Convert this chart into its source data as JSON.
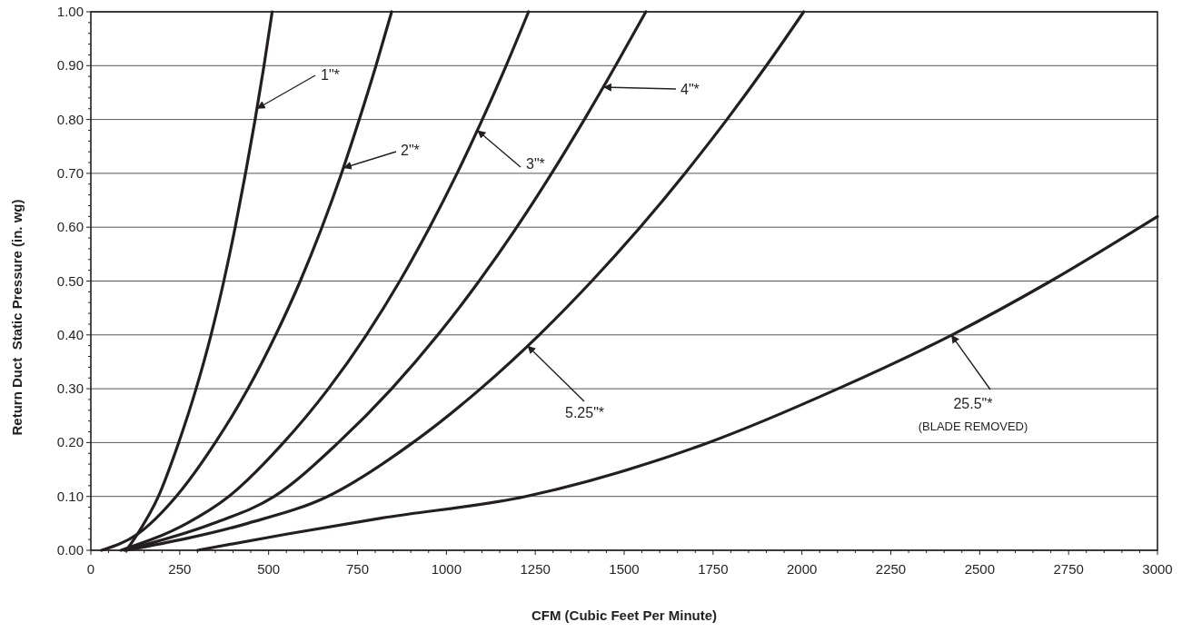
{
  "chart_data": {
    "type": "line",
    "xlabel": "CFM (Cubic Feet Per Minute)",
    "ylabel": "Return Duct  Static Pressure (in. wg)",
    "xlim": [
      0,
      3000
    ],
    "ylim": [
      0,
      1
    ],
    "grid": "y",
    "xticks": [
      0,
      {
        "value": 50,
        "label": null
      },
      {
        "value": 100,
        "label": null
      },
      {
        "value": 150,
        "label": null
      },
      {
        "value": 200,
        "label": null
      },
      250,
      {
        "value": 300,
        "label": null
      },
      {
        "value": 350,
        "label": null
      },
      {
        "value": 400,
        "label": null
      },
      {
        "value": 450,
        "label": null
      },
      500,
      {
        "value": 550,
        "label": null
      },
      {
        "value": 600,
        "label": null
      },
      {
        "value": 650,
        "label": null
      },
      {
        "value": 700,
        "label": null
      },
      750,
      {
        "value": 800,
        "label": null
      },
      {
        "value": 850,
        "label": null
      },
      {
        "value": 900,
        "label": null
      },
      {
        "value": 950,
        "label": null
      },
      1000,
      {
        "value": 1050,
        "label": null
      },
      {
        "value": 1100,
        "label": null
      },
      {
        "value": 1150,
        "label": null
      },
      {
        "value": 1200,
        "label": null
      },
      1250,
      {
        "value": 1300,
        "label": null
      },
      {
        "value": 1350,
        "label": null
      },
      {
        "value": 1400,
        "label": null
      },
      {
        "value": 1450,
        "label": null
      },
      1500,
      {
        "value": 1550,
        "label": null
      },
      {
        "value": 1600,
        "label": null
      },
      {
        "value": 1650,
        "label": null
      },
      {
        "value": 1700,
        "label": null
      },
      1750,
      {
        "value": 1800,
        "label": null
      },
      {
        "value": 1850,
        "label": null
      },
      {
        "value": 1900,
        "label": null
      },
      {
        "value": 1950,
        "label": null
      },
      2000,
      {
        "value": 2050,
        "label": null
      },
      {
        "value": 2100,
        "label": null
      },
      {
        "value": 2150,
        "label": null
      },
      {
        "value": 2200,
        "label": null
      },
      2250,
      {
        "value": 2300,
        "label": null
      },
      {
        "value": 2350,
        "label": null
      },
      {
        "value": 2400,
        "label": null
      },
      {
        "value": 2450,
        "label": null
      },
      2500,
      {
        "value": 2550,
        "label": null
      },
      {
        "value": 2600,
        "label": null
      },
      {
        "value": 2650,
        "label": null
      },
      {
        "value": 2700,
        "label": null
      },
      2750,
      {
        "value": 2800,
        "label": null
      },
      {
        "value": 2850,
        "label": null
      },
      {
        "value": 2900,
        "label": null
      },
      {
        "value": 2950,
        "label": null
      },
      3000
    ],
    "yticks": [
      {
        "value": 0,
        "label": "0.00"
      },
      {
        "value": 0.02,
        "label": null
      },
      {
        "value": 0.04,
        "label": null
      },
      {
        "value": 0.06,
        "label": null
      },
      {
        "value": 0.08,
        "label": null
      },
      {
        "value": 0.1,
        "label": "0.10"
      },
      {
        "value": 0.12,
        "label": null
      },
      {
        "value": 0.14,
        "label": null
      },
      {
        "value": 0.16,
        "label": null
      },
      {
        "value": 0.18,
        "label": null
      },
      {
        "value": 0.2,
        "label": "0.20"
      },
      {
        "value": 0.22,
        "label": null
      },
      {
        "value": 0.24,
        "label": null
      },
      {
        "value": 0.26,
        "label": null
      },
      {
        "value": 0.28,
        "label": null
      },
      {
        "value": 0.3,
        "label": "0.30"
      },
      {
        "value": 0.32,
        "label": null
      },
      {
        "value": 0.34,
        "label": null
      },
      {
        "value": 0.36,
        "label": null
      },
      {
        "value": 0.38,
        "label": null
      },
      {
        "value": 0.4,
        "label": "0.40"
      },
      {
        "value": 0.42,
        "label": null
      },
      {
        "value": 0.44,
        "label": null
      },
      {
        "value": 0.46,
        "label": null
      },
      {
        "value": 0.48,
        "label": null
      },
      {
        "value": 0.5,
        "label": "0.50"
      },
      {
        "value": 0.52,
        "label": null
      },
      {
        "value": 0.54,
        "label": null
      },
      {
        "value": 0.56,
        "label": null
      },
      {
        "value": 0.58,
        "label": null
      },
      {
        "value": 0.6,
        "label": "0.60"
      },
      {
        "value": 0.62,
        "label": null
      },
      {
        "value": 0.64,
        "label": null
      },
      {
        "value": 0.66,
        "label": null
      },
      {
        "value": 0.68,
        "label": null
      },
      {
        "value": 0.7,
        "label": "0.70"
      },
      {
        "value": 0.72,
        "label": null
      },
      {
        "value": 0.74,
        "label": null
      },
      {
        "value": 0.76,
        "label": null
      },
      {
        "value": 0.78,
        "label": null
      },
      {
        "value": 0.8,
        "label": "0.80"
      },
      {
        "value": 0.82,
        "label": null
      },
      {
        "value": 0.84,
        "label": null
      },
      {
        "value": 0.86,
        "label": null
      },
      {
        "value": 0.88,
        "label": null
      },
      {
        "value": 0.9,
        "label": "0.90"
      },
      {
        "value": 0.92,
        "label": null
      },
      {
        "value": 0.94,
        "label": null
      },
      {
        "value": 0.96,
        "label": null
      },
      {
        "value": 0.98,
        "label": null
      },
      {
        "value": 1,
        "label": "1.00"
      }
    ],
    "series": [
      {
        "color": "#231f20",
        "x": [
          100,
          131,
          190,
          247,
          296,
          338,
          374,
          406,
          435,
          462,
          487,
          510
        ],
        "values": [
          0,
          0.03,
          0.1,
          0.2,
          0.3,
          0.4,
          0.5,
          0.6,
          0.7,
          0.8,
          0.9,
          1.0
        ]
      },
      {
        "color": "#231f20",
        "x": [
          30,
          131,
          240,
          350,
          442,
          520,
          589,
          650,
          705,
          755,
          802,
          846
        ],
        "values": [
          0,
          0.03,
          0.1,
          0.2,
          0.3,
          0.4,
          0.5,
          0.6,
          0.7,
          0.8,
          0.9,
          1.0
        ]
      },
      {
        "color": "#231f20",
        "x": [
          85,
          270,
          388,
          542,
          668,
          775,
          869,
          953,
          1030,
          1101,
          1168,
          1231
        ],
        "values": [
          0,
          0.05,
          0.1,
          0.2,
          0.3,
          0.4,
          0.5,
          0.6,
          0.7,
          0.8,
          0.9,
          1.0
        ]
      },
      {
        "color": "#231f20",
        "x": [
          95,
          345,
          516,
          696,
          846,
          976,
          1092,
          1198,
          1296,
          1388,
          1476,
          1561
        ],
        "values": [
          0,
          0.05,
          0.1,
          0.2,
          0.3,
          0.4,
          0.5,
          0.6,
          0.7,
          0.8,
          0.9,
          1.0
        ]
      },
      {
        "color": "#231f20",
        "x": [
          100,
          441,
          666,
          906,
          1096,
          1261,
          1409,
          1545,
          1671,
          1789,
          1900,
          2005
        ],
        "values": [
          0,
          0.05,
          0.1,
          0.2,
          0.3,
          0.4,
          0.5,
          0.6,
          0.7,
          0.8,
          0.9,
          1.0
        ]
      },
      {
        "color": "#231f20",
        "x": [
          300,
          550,
          820,
          1223,
          1737,
          2101,
          2422,
          2700,
          3000
        ],
        "values": [
          0,
          0.03,
          0.06,
          0.1,
          0.2,
          0.3,
          0.4,
          0.5,
          0.62
        ]
      }
    ],
    "annotations": [
      {
        "text": "1\"*",
        "x": 467,
        "y": 0.82
      },
      {
        "text": "2\"*",
        "x": 710,
        "y": 0.71
      },
      {
        "text": "3\"*",
        "x": 1087,
        "y": 0.78
      },
      {
        "text": "4\"*",
        "x": 1441,
        "y": 0.86
      },
      {
        "text": "5.25\"*",
        "x": 1228,
        "y": 0.38
      },
      {
        "text": "25.5\"*",
        "x": 2420,
        "y": 0.4
      },
      "(BLADE REMOVED)"
    ]
  }
}
